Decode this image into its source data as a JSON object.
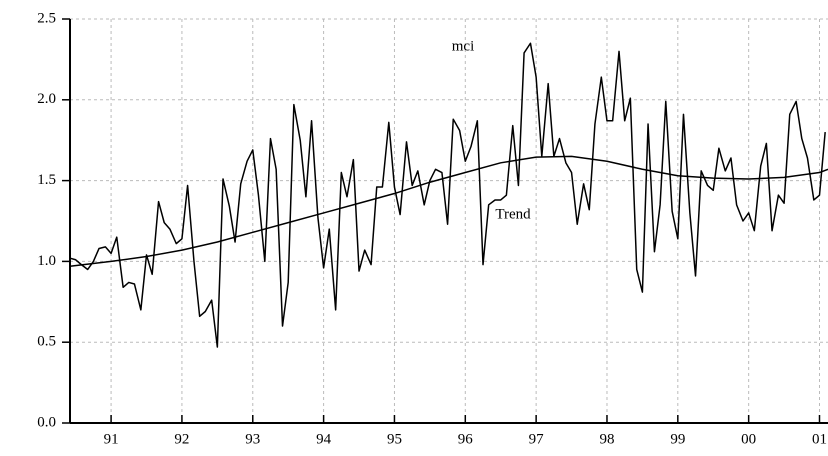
{
  "chart_data": {
    "type": "line",
    "xlim": [
      1990.42,
      2001.12
    ],
    "ylim": [
      0,
      2.5
    ],
    "xticks": [
      {
        "value": 1991,
        "label": "91"
      },
      {
        "value": 1992,
        "label": "92"
      },
      {
        "value": 1993,
        "label": "93"
      },
      {
        "value": 1994,
        "label": "94"
      },
      {
        "value": 1995,
        "label": "95"
      },
      {
        "value": 1996,
        "label": "96"
      },
      {
        "value": 1997,
        "label": "97"
      },
      {
        "value": 1998,
        "label": "98"
      },
      {
        "value": 1999,
        "label": "99"
      },
      {
        "value": 2000,
        "label": "00"
      },
      {
        "value": 2001,
        "label": "01"
      }
    ],
    "yticks": [
      {
        "value": 0,
        "label": "0.0"
      },
      0.5,
      {
        "value": 1,
        "label": "1.0"
      },
      1.5,
      {
        "value": 2,
        "label": "2.0"
      },
      2.5
    ],
    "grid": true,
    "series": [
      {
        "name": "mci",
        "color": "#000000",
        "x": [
          1990.42,
          1990.5,
          1990.58,
          1990.67,
          1990.75,
          1990.83,
          1990.92,
          1991.0,
          1991.08,
          1991.17,
          1991.25,
          1991.33,
          1991.42,
          1991.5,
          1991.58,
          1991.67,
          1991.75,
          1991.83,
          1991.92,
          1992.0,
          1992.08,
          1992.17,
          1992.25,
          1992.33,
          1992.42,
          1992.5,
          1992.58,
          1992.67,
          1992.75,
          1992.83,
          1992.92,
          1993.0,
          1993.08,
          1993.17,
          1993.25,
          1993.33,
          1993.42,
          1993.5,
          1993.58,
          1993.67,
          1993.75,
          1993.83,
          1993.92,
          1994.0,
          1994.08,
          1994.17,
          1994.25,
          1994.33,
          1994.42,
          1994.5,
          1994.58,
          1994.67,
          1994.75,
          1994.83,
          1994.92,
          1995.0,
          1995.08,
          1995.17,
          1995.25,
          1995.33,
          1995.42,
          1995.5,
          1995.58,
          1995.67,
          1995.75,
          1995.83,
          1995.92,
          1996.0,
          1996.08,
          1996.17,
          1996.25,
          1996.33,
          1996.42,
          1996.5,
          1996.58,
          1996.67,
          1996.75,
          1996.83,
          1996.92,
          1997.0,
          1997.08,
          1997.17,
          1997.25,
          1997.33,
          1997.42,
          1997.5,
          1997.58,
          1997.67,
          1997.75,
          1997.83,
          1997.92,
          1998.0,
          1998.08,
          1998.17,
          1998.25,
          1998.33,
          1998.42,
          1998.5,
          1998.58,
          1998.67,
          1998.75,
          1998.83,
          1998.92,
          1999.0,
          1999.08,
          1999.17,
          1999.25,
          1999.33,
          1999.42,
          1999.5,
          1999.58,
          1999.67,
          1999.75,
          1999.83,
          1999.92,
          2000.0,
          2000.08,
          2000.17,
          2000.25,
          2000.33,
          2000.42,
          2000.5,
          2000.58,
          2000.67,
          2000.75,
          2000.83,
          2000.92,
          2001.0,
          2001.08
        ],
        "values": [
          1.02,
          1.01,
          0.98,
          0.95,
          1.0,
          1.08,
          1.09,
          1.05,
          1.15,
          0.84,
          0.87,
          0.86,
          0.7,
          1.04,
          0.92,
          1.37,
          1.24,
          1.2,
          1.11,
          1.14,
          1.47,
          1.0,
          0.66,
          0.69,
          0.76,
          0.47,
          1.51,
          1.34,
          1.12,
          1.48,
          1.62,
          1.69,
          1.41,
          1.0,
          1.76,
          1.57,
          0.6,
          0.87,
          1.97,
          1.75,
          1.4,
          1.87,
          1.27,
          0.96,
          1.2,
          0.7,
          1.55,
          1.4,
          1.63,
          0.94,
          1.07,
          0.98,
          1.46,
          1.46,
          1.86,
          1.46,
          1.29,
          1.74,
          1.47,
          1.56,
          1.35,
          1.5,
          1.57,
          1.55,
          1.23,
          1.88,
          1.81,
          1.62,
          1.71,
          1.87,
          0.98,
          1.35,
          1.38,
          1.38,
          1.41,
          1.84,
          1.47,
          2.29,
          2.35,
          2.14,
          1.65,
          2.1,
          1.65,
          1.76,
          1.61,
          1.55,
          1.23,
          1.48,
          1.32,
          1.85,
          2.14,
          1.87,
          1.87,
          2.3,
          1.87,
          2.01,
          0.95,
          0.81,
          1.85,
          1.06,
          1.35,
          1.99,
          1.31,
          1.14,
          1.91,
          1.3,
          0.91,
          1.56,
          1.47,
          1.44,
          1.7,
          1.56,
          1.64,
          1.35,
          1.25,
          1.3,
          1.19,
          1.59,
          1.73,
          1.19,
          1.41,
          1.36,
          1.91,
          1.99,
          1.76,
          1.64,
          1.38,
          1.41,
          1.8
        ]
      },
      {
        "name": "Trend",
        "color": "#000000",
        "x": [
          1990.42,
          1991,
          1991.5,
          1992,
          1992.5,
          1993,
          1993.5,
          1994,
          1994.5,
          1995,
          1995.5,
          1996,
          1996.5,
          1997,
          1997.5,
          1998,
          1998.5,
          1999,
          1999.5,
          2000,
          2000.5,
          2001,
          2001.12
        ],
        "values": [
          0.97,
          1.0,
          1.03,
          1.07,
          1.12,
          1.18,
          1.24,
          1.3,
          1.36,
          1.42,
          1.49,
          1.55,
          1.61,
          1.645,
          1.65,
          1.62,
          1.57,
          1.53,
          1.515,
          1.51,
          1.52,
          1.55,
          1.57
        ]
      }
    ]
  }
}
